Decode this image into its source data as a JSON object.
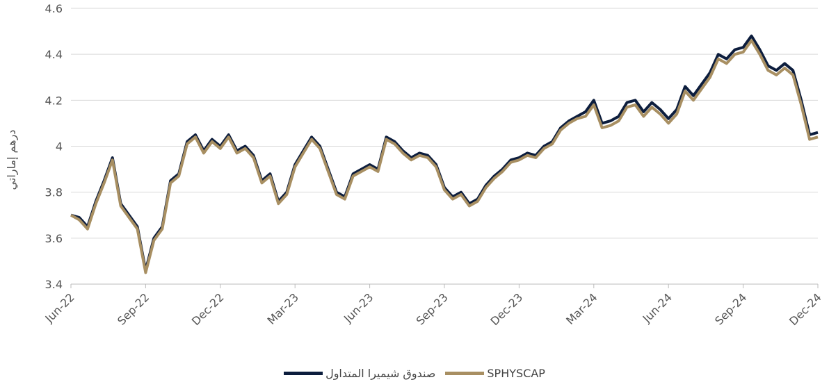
{
  "chart_data": {
    "type": "line",
    "y_label": "درهم إماراتي",
    "categories": [
      "Jun-22",
      null,
      null,
      null,
      null,
      null,
      null,
      null,
      null,
      "Sep-22",
      null,
      null,
      null,
      null,
      null,
      null,
      null,
      null,
      "Dec-22",
      null,
      null,
      null,
      null,
      null,
      null,
      null,
      null,
      "Mar-23",
      null,
      null,
      null,
      null,
      null,
      null,
      null,
      null,
      "Jun-23",
      null,
      null,
      null,
      null,
      null,
      null,
      null,
      null,
      "Sep-23",
      null,
      null,
      null,
      null,
      null,
      null,
      null,
      null,
      "Dec-23",
      null,
      null,
      null,
      null,
      null,
      null,
      null,
      null,
      "Mar-24",
      null,
      null,
      null,
      null,
      null,
      null,
      null,
      null,
      "Jun-24",
      null,
      null,
      null,
      null,
      null,
      null,
      null,
      null,
      "Sep-24",
      null,
      null,
      null,
      null,
      null,
      null,
      null,
      null,
      "Dec-24"
    ],
    "series": [
      {
        "name": "صندوق شيميرا المتداول",
        "color": "#0c1d3d",
        "values": [
          3.7,
          3.69,
          3.65,
          3.76,
          3.85,
          3.95,
          3.75,
          3.7,
          3.65,
          3.46,
          3.6,
          3.65,
          3.85,
          3.88,
          4.02,
          4.05,
          3.98,
          4.03,
          4.0,
          4.05,
          3.98,
          4.0,
          3.96,
          3.85,
          3.88,
          3.76,
          3.8,
          3.92,
          3.98,
          4.04,
          4.0,
          3.9,
          3.8,
          3.78,
          3.88,
          3.9,
          3.92,
          3.9,
          4.04,
          4.02,
          3.98,
          3.95,
          3.97,
          3.96,
          3.92,
          3.82,
          3.78,
          3.8,
          3.75,
          3.77,
          3.83,
          3.87,
          3.9,
          3.94,
          3.95,
          3.97,
          3.96,
          4.0,
          4.02,
          4.08,
          4.11,
          4.13,
          4.15,
          4.2,
          4.1,
          4.11,
          4.13,
          4.19,
          4.2,
          4.15,
          4.19,
          4.16,
          4.12,
          4.16,
          4.26,
          4.22,
          4.27,
          4.32,
          4.4,
          4.38,
          4.42,
          4.43,
          4.48,
          4.42,
          4.35,
          4.33,
          4.36,
          4.33,
          4.2,
          4.05,
          4.06
        ]
      },
      {
        "name": "SPHYSCAP",
        "color": "#a88f62",
        "values": [
          3.7,
          3.68,
          3.64,
          3.75,
          3.84,
          3.94,
          3.74,
          3.69,
          3.64,
          3.45,
          3.59,
          3.64,
          3.84,
          3.87,
          4.01,
          4.04,
          3.97,
          4.02,
          3.99,
          4.04,
          3.97,
          3.99,
          3.95,
          3.84,
          3.87,
          3.75,
          3.79,
          3.91,
          3.97,
          4.03,
          3.99,
          3.89,
          3.79,
          3.77,
          3.87,
          3.89,
          3.91,
          3.89,
          4.03,
          4.01,
          3.97,
          3.94,
          3.96,
          3.95,
          3.91,
          3.81,
          3.77,
          3.79,
          3.74,
          3.76,
          3.82,
          3.86,
          3.89,
          3.93,
          3.94,
          3.96,
          3.95,
          3.99,
          4.01,
          4.07,
          4.1,
          4.12,
          4.13,
          4.18,
          4.08,
          4.09,
          4.11,
          4.17,
          4.18,
          4.13,
          4.17,
          4.14,
          4.1,
          4.14,
          4.24,
          4.2,
          4.25,
          4.3,
          4.38,
          4.36,
          4.4,
          4.41,
          4.46,
          4.4,
          4.33,
          4.31,
          4.34,
          4.31,
          4.18,
          4.03,
          4.04
        ]
      }
    ],
    "ylim": [
      3.4,
      4.6
    ],
    "yticks": [
      3.4,
      3.6,
      3.8,
      4.0,
      4.2,
      4.4,
      4.6
    ],
    "grid": true
  }
}
